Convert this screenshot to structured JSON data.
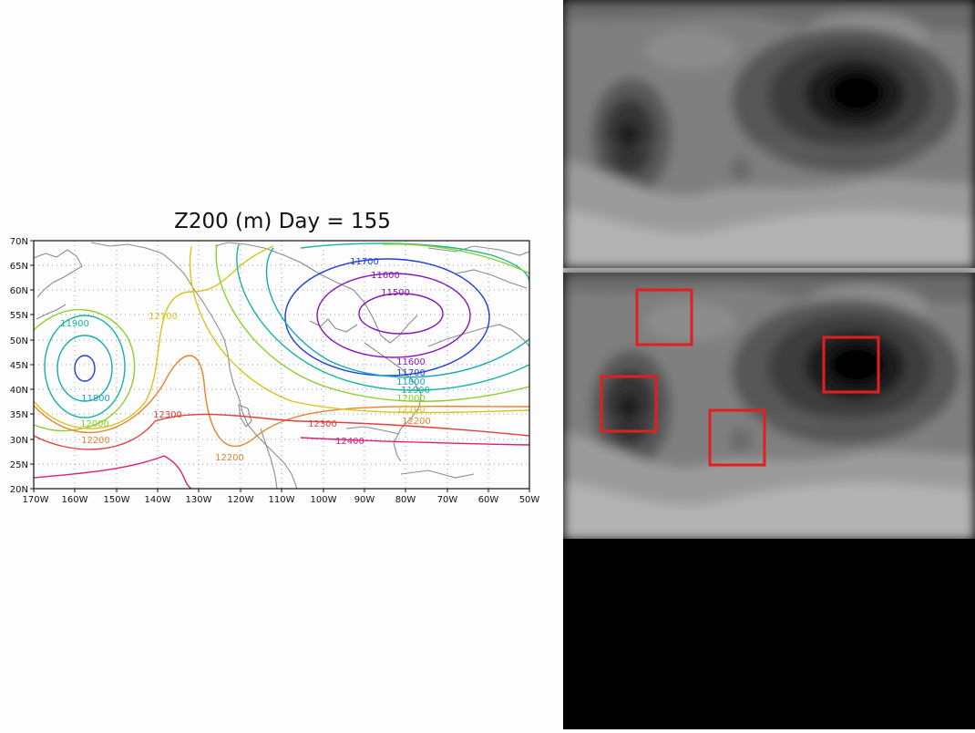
{
  "plot": {
    "title": "Z200 (m) Day = 155",
    "lat_labels": [
      "70N",
      "65N",
      "60N",
      "55N",
      "50N",
      "45N",
      "40N",
      "35N",
      "30N",
      "25N",
      "20N"
    ],
    "lon_labels": [
      "170W",
      "160W",
      "150W",
      "140W",
      "130W",
      "120W",
      "110W",
      "100W",
      "90W",
      "80W",
      "70W",
      "60W",
      "50W"
    ],
    "contour_labels": [
      {
        "text": "11700",
        "color": "#1f3fd8"
      },
      {
        "text": "11600",
        "color": "#8a17b8"
      },
      {
        "text": "11500",
        "color": "#8a17b8"
      },
      {
        "text": "11900",
        "color": "#19b3a0"
      },
      {
        "text": "12100",
        "color": "#d9c31e"
      },
      {
        "text": "11800",
        "color": "#18a7b8"
      },
      {
        "text": "12000",
        "color": "#8ccf2a"
      },
      {
        "text": "12200",
        "color": "#e6832a"
      },
      {
        "text": "12300",
        "color": "#e0403a"
      },
      {
        "text": "12200",
        "color": "#e6832a"
      },
      {
        "text": "12300",
        "color": "#e0403a"
      },
      {
        "text": "12400",
        "color": "#d8207a"
      },
      {
        "text": "11600",
        "color": "#8a17b8"
      },
      {
        "text": "11700",
        "color": "#1f3fd8"
      },
      {
        "text": "11800",
        "color": "#18a7b8"
      },
      {
        "text": "11900",
        "color": "#19b3a0"
      },
      {
        "text": "12000",
        "color": "#8ccf2a"
      },
      {
        "text": "12100",
        "color": "#d9c31e"
      },
      {
        "text": "12200",
        "color": "#e6832a"
      }
    ],
    "contour_colors": {
      "c11500": "#8a17b8",
      "c11600": "#8a17b8",
      "c11700": "#1f3fd8",
      "c11800": "#18a7b8",
      "c11900": "#19b3a0",
      "c12000": "#8ccf2a",
      "c12100": "#d9c31e",
      "c12200": "#e6832a",
      "c12300": "#e0403a",
      "c12400": "#d8207a"
    }
  },
  "saliency_panel": {
    "highlight_color": "#e02020"
  }
}
